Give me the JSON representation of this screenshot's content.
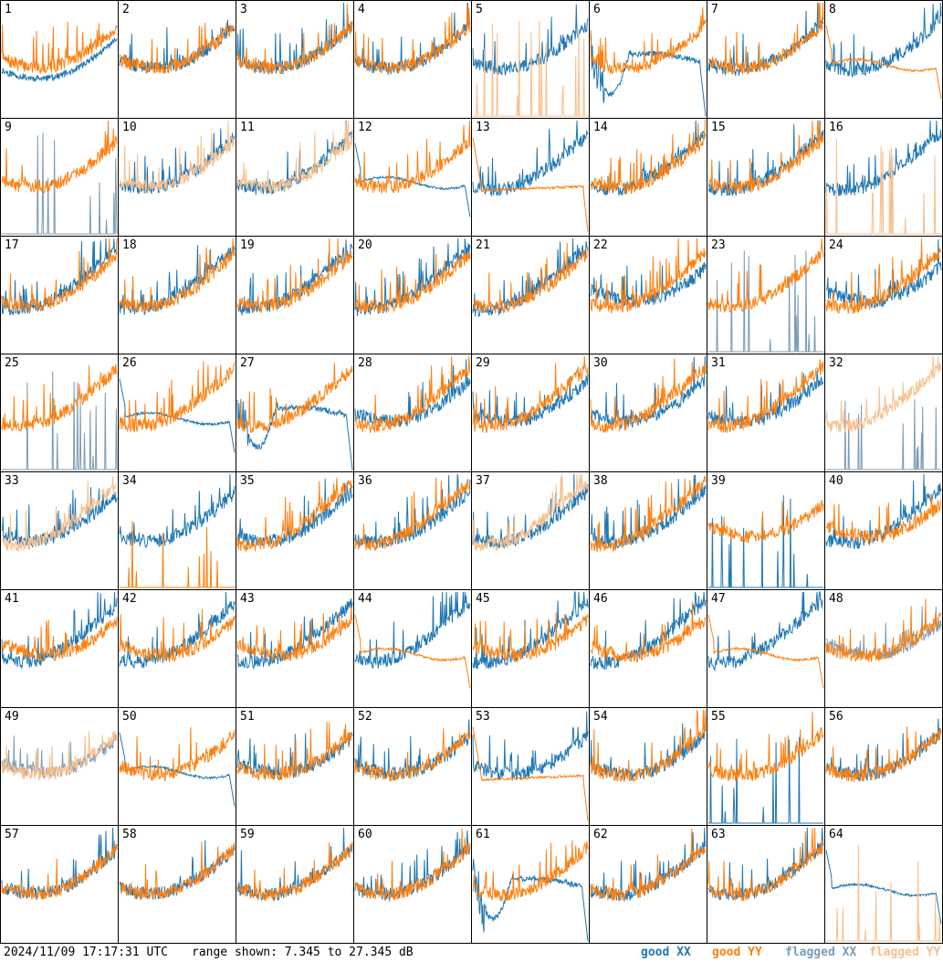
{
  "footer": {
    "timestamp": "2024/11/09 17:17:31 UTC",
    "range_text": "range shown: 7.345 to 27.345 dB",
    "legend": {
      "good_xx": "good XX",
      "good_yy": "good YY",
      "flagged_xx": "flagged XX",
      "flagged_yy": "flagged YY"
    }
  },
  "colors": {
    "good_xx": "#1f77b4",
    "good_yy": "#ff7f0e",
    "flagged_xx": "#7b9bb5",
    "flagged_yy": "#f7bf8c"
  },
  "chart_data": {
    "type": "line",
    "ylim": [
      7.345,
      27.345
    ],
    "ylabel": "",
    "xlabel": "",
    "panels": [
      {
        "label": "1",
        "xx": "good",
        "yy": "good",
        "xx_style": "offset_low",
        "yy_style": "normal"
      },
      {
        "label": "2",
        "xx": "good",
        "yy": "good",
        "xx_style": "normal",
        "yy_style": "normal"
      },
      {
        "label": "3",
        "xx": "good",
        "yy": "good",
        "xx_style": "normal",
        "yy_style": "normal"
      },
      {
        "label": "4",
        "xx": "good",
        "yy": "good",
        "xx_style": "normal",
        "yy_style": "normal"
      },
      {
        "label": "5",
        "xx": "good",
        "yy": "flagged",
        "xx_style": "normal",
        "yy_style": "spiky_low"
      },
      {
        "label": "6",
        "xx": "good",
        "yy": "good",
        "xx_style": "dip",
        "yy_style": "normal"
      },
      {
        "label": "7",
        "xx": "good",
        "yy": "good",
        "xx_style": "normal",
        "yy_style": "normal"
      },
      {
        "label": "8",
        "xx": "good",
        "yy": "good",
        "xx_style": "normal",
        "yy_style": "flat"
      },
      {
        "label": "9",
        "xx": "flagged",
        "yy": "good",
        "xx_style": "spiky_low",
        "yy_style": "normal"
      },
      {
        "label": "10",
        "xx": "good",
        "yy": "flagged",
        "xx_style": "normal",
        "yy_style": "normal"
      },
      {
        "label": "11",
        "xx": "good",
        "yy": "flagged",
        "xx_style": "normal",
        "yy_style": "normal"
      },
      {
        "label": "12",
        "xx": "good",
        "yy": "good",
        "xx_style": "flat",
        "yy_style": "normal"
      },
      {
        "label": "13",
        "xx": "good",
        "yy": "good",
        "xx_style": "normal",
        "yy_style": "flat_low"
      },
      {
        "label": "14",
        "xx": "good",
        "yy": "good",
        "xx_style": "normal",
        "yy_style": "normal"
      },
      {
        "label": "15",
        "xx": "good",
        "yy": "good",
        "xx_style": "normal",
        "yy_style": "normal"
      },
      {
        "label": "16",
        "xx": "good",
        "yy": "flagged",
        "xx_style": "normal",
        "yy_style": "spiky_low"
      },
      {
        "label": "17",
        "xx": "good",
        "yy": "good",
        "xx_style": "normal",
        "yy_style": "normal"
      },
      {
        "label": "18",
        "xx": "good",
        "yy": "good",
        "xx_style": "normal",
        "yy_style": "normal"
      },
      {
        "label": "19",
        "xx": "good",
        "yy": "good",
        "xx_style": "normal",
        "yy_style": "normal"
      },
      {
        "label": "20",
        "xx": "good",
        "yy": "good",
        "xx_style": "normal",
        "yy_style": "normal"
      },
      {
        "label": "21",
        "xx": "good",
        "yy": "good",
        "xx_style": "normal",
        "yy_style": "normal"
      },
      {
        "label": "22",
        "xx": "good",
        "yy": "good",
        "xx_style": "normal",
        "yy_style": "normal"
      },
      {
        "label": "23",
        "xx": "flagged",
        "yy": "good",
        "xx_style": "spiky_low",
        "yy_style": "normal"
      },
      {
        "label": "24",
        "xx": "good",
        "yy": "good",
        "xx_style": "normal",
        "yy_style": "normal"
      },
      {
        "label": "25",
        "xx": "flagged",
        "yy": "good",
        "xx_style": "spiky_low",
        "yy_style": "normal"
      },
      {
        "label": "26",
        "xx": "good",
        "yy": "good",
        "xx_style": "flat",
        "yy_style": "normal"
      },
      {
        "label": "27",
        "xx": "good",
        "yy": "good",
        "xx_style": "dip",
        "yy_style": "normal"
      },
      {
        "label": "28",
        "xx": "good",
        "yy": "good",
        "xx_style": "normal",
        "yy_style": "normal"
      },
      {
        "label": "29",
        "xx": "good",
        "yy": "good",
        "xx_style": "normal",
        "yy_style": "normal"
      },
      {
        "label": "30",
        "xx": "good",
        "yy": "good",
        "xx_style": "normal",
        "yy_style": "normal"
      },
      {
        "label": "31",
        "xx": "good",
        "yy": "good",
        "xx_style": "normal",
        "yy_style": "normal"
      },
      {
        "label": "32",
        "xx": "flagged",
        "yy": "flagged",
        "xx_style": "spiky_low",
        "yy_style": "normal"
      },
      {
        "label": "33",
        "xx": "good",
        "yy": "flagged",
        "xx_style": "normal",
        "yy_style": "normal"
      },
      {
        "label": "34",
        "xx": "good",
        "yy": "good",
        "xx_style": "normal",
        "yy_style": "spiky_low"
      },
      {
        "label": "35",
        "xx": "good",
        "yy": "good",
        "xx_style": "normal",
        "yy_style": "normal"
      },
      {
        "label": "36",
        "xx": "good",
        "yy": "good",
        "xx_style": "normal",
        "yy_style": "normal"
      },
      {
        "label": "37",
        "xx": "good",
        "yy": "flagged",
        "xx_style": "normal",
        "yy_style": "normal"
      },
      {
        "label": "38",
        "xx": "good",
        "yy": "good",
        "xx_style": "normal",
        "yy_style": "normal"
      },
      {
        "label": "39",
        "xx": "good",
        "yy": "good",
        "xx_style": "spiky_low",
        "yy_style": "normal"
      },
      {
        "label": "40",
        "xx": "good",
        "yy": "good",
        "xx_style": "normal",
        "yy_style": "normal"
      },
      {
        "label": "41",
        "xx": "good",
        "yy": "good",
        "xx_style": "normal",
        "yy_style": "normal"
      },
      {
        "label": "42",
        "xx": "good",
        "yy": "good",
        "xx_style": "normal",
        "yy_style": "normal"
      },
      {
        "label": "43",
        "xx": "good",
        "yy": "good",
        "xx_style": "normal",
        "yy_style": "normal"
      },
      {
        "label": "44",
        "xx": "good",
        "yy": "good",
        "xx_style": "normal",
        "yy_style": "flat"
      },
      {
        "label": "45",
        "xx": "good",
        "yy": "good",
        "xx_style": "normal",
        "yy_style": "normal"
      },
      {
        "label": "46",
        "xx": "good",
        "yy": "good",
        "xx_style": "normal",
        "yy_style": "normal"
      },
      {
        "label": "47",
        "xx": "good",
        "yy": "good",
        "xx_style": "normal",
        "yy_style": "flat"
      },
      {
        "label": "48",
        "xx": "flagged",
        "yy": "good",
        "xx_style": "normal",
        "yy_style": "normal"
      },
      {
        "label": "49",
        "xx": "flagged",
        "yy": "flagged",
        "xx_style": "normal",
        "yy_style": "normal"
      },
      {
        "label": "50",
        "xx": "good",
        "yy": "good",
        "xx_style": "flat",
        "yy_style": "normal"
      },
      {
        "label": "51",
        "xx": "good",
        "yy": "good",
        "xx_style": "normal",
        "yy_style": "normal"
      },
      {
        "label": "52",
        "xx": "good",
        "yy": "good",
        "xx_style": "normal",
        "yy_style": "normal"
      },
      {
        "label": "53",
        "xx": "good",
        "yy": "good",
        "xx_style": "normal",
        "yy_style": "flat_low"
      },
      {
        "label": "54",
        "xx": "good",
        "yy": "good",
        "xx_style": "normal",
        "yy_style": "normal"
      },
      {
        "label": "55",
        "xx": "good",
        "yy": "good",
        "xx_style": "spiky_low",
        "yy_style": "normal"
      },
      {
        "label": "56",
        "xx": "good",
        "yy": "good",
        "xx_style": "normal",
        "yy_style": "normal"
      },
      {
        "label": "57",
        "xx": "good",
        "yy": "good",
        "xx_style": "normal",
        "yy_style": "normal"
      },
      {
        "label": "58",
        "xx": "good",
        "yy": "good",
        "xx_style": "normal",
        "yy_style": "normal"
      },
      {
        "label": "59",
        "xx": "good",
        "yy": "good",
        "xx_style": "normal",
        "yy_style": "normal"
      },
      {
        "label": "60",
        "xx": "good",
        "yy": "good",
        "xx_style": "normal",
        "yy_style": "normal"
      },
      {
        "label": "61",
        "xx": "good",
        "yy": "good",
        "xx_style": "dip",
        "yy_style": "normal"
      },
      {
        "label": "62",
        "xx": "good",
        "yy": "good",
        "xx_style": "normal",
        "yy_style": "normal"
      },
      {
        "label": "63",
        "xx": "good",
        "yy": "good",
        "xx_style": "normal",
        "yy_style": "normal"
      },
      {
        "label": "64",
        "xx": "good",
        "yy": "flagged",
        "xx_style": "flat",
        "yy_style": "spiky_low"
      }
    ]
  }
}
